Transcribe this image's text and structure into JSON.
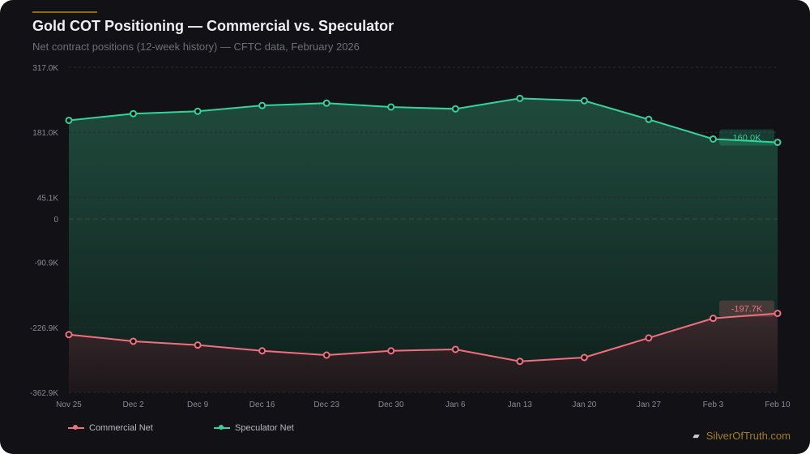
{
  "header": {
    "title": "Gold COT Positioning — Commercial vs. Speculator",
    "subtitle": "Net contract positions (12-week history) — CFTC data, February 2026"
  },
  "brand": {
    "name": "SilverOfTruth.com",
    "icon": "gold-bars-icon"
  },
  "colors": {
    "commercial": "#f07080",
    "speculator": "#34d399",
    "brand": "#a27f26"
  },
  "chart_data": {
    "type": "line",
    "categories": [
      "Nov 25",
      "Dec 2",
      "Dec 9",
      "Dec 16",
      "Dec 23",
      "Dec 30",
      "Jan 6",
      "Jan 13",
      "Jan 20",
      "Jan 27",
      "Feb 3",
      "Feb 10"
    ],
    "y_ticks": [
      "317.0K",
      "181.0K",
      "45.1K",
      "0",
      "-90.9K",
      "-226.9K",
      "-362.9K"
    ],
    "y_tick_values": [
      317.0,
      181.0,
      45.1,
      0,
      -90.9,
      -226.9,
      -362.9
    ],
    "ylim": [
      -362.9,
      317.0
    ],
    "y_unit": "K contracts",
    "grid": true,
    "legend_position": "bottom-left",
    "series": [
      {
        "name": "Commercial Net",
        "values": [
          -242,
          -256,
          -264,
          -276,
          -285,
          -276,
          -273,
          -298,
          -290,
          -249,
          -208,
          -197.7
        ],
        "end_label": "-197.7K"
      },
      {
        "name": "Speculator Net",
        "values": [
          206,
          220,
          225,
          237,
          242,
          234,
          230,
          252,
          247,
          208,
          167,
          160.0
        ],
        "end_label": "160.0K"
      }
    ]
  }
}
